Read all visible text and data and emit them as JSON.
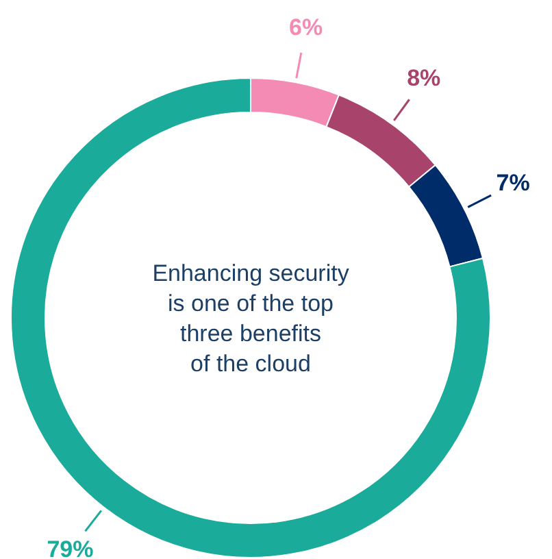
{
  "chart_data": {
    "type": "donut",
    "title": "Enhancing security\nis one of the top\nthree benefits\nof the cloud",
    "categories": [
      null,
      null,
      null,
      null
    ],
    "values": [
      6,
      8,
      7,
      79
    ],
    "value_labels": [
      "6%",
      "8%",
      "7%",
      "79%"
    ],
    "colors": [
      "#f48bb5",
      "#a8436b",
      "#002d6a",
      "#1aab9b"
    ]
  }
}
